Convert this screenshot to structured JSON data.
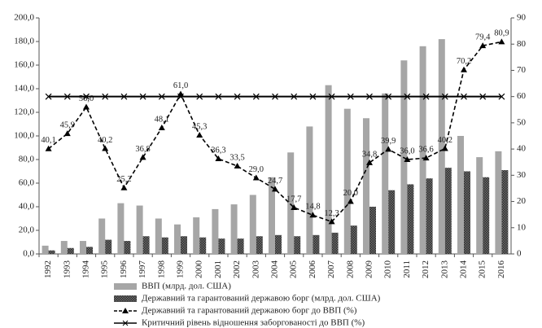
{
  "chart_data": {
    "type": "bar",
    "categories": [
      "1992",
      "1993",
      "1994",
      "1995",
      "1996",
      "1997",
      "1998",
      "1999",
      "2000",
      "2001",
      "2002",
      "2003",
      "2004",
      "2005",
      "2006",
      "2007",
      "2008",
      "2009",
      "2010",
      "2011",
      "2012",
      "2013",
      "2014",
      "2015",
      "2016"
    ],
    "series": [
      {
        "name": "ВВП (млрд. дол. США)",
        "type": "bar",
        "color": "#a6a6a6",
        "values": [
          7,
          11,
          11,
          30,
          43,
          41,
          30,
          25,
          31,
          38,
          42,
          50,
          65,
          86,
          108,
          143,
          123,
          115,
          136,
          164,
          176,
          182,
          100,
          82,
          87
        ]
      },
      {
        "name": "Державний та гарантований державою борг (млрд. дол. США)",
        "type": "bar",
        "color": "#4d4d4d",
        "pattern": true,
        "values": [
          3,
          5,
          6,
          12,
          11,
          15,
          14,
          15,
          14,
          13,
          13,
          15,
          16,
          15,
          16,
          18,
          24,
          40,
          54,
          59,
          64,
          73,
          70,
          65,
          71
        ]
      },
      {
        "name": "Державний та гарантований державою борг до ВВП (%)",
        "type": "line",
        "axis": "y2",
        "color": "#000000",
        "dash": true,
        "marker": "triangle",
        "values": [
          40.1,
          45.9,
          56.0,
          40.2,
          25.2,
          36.8,
          48.1,
          61.0,
          45.3,
          36.3,
          33.5,
          29.0,
          24.7,
          17.7,
          14.8,
          12.3,
          20.0,
          34.8,
          39.9,
          36.0,
          36.6,
          40.2,
          70.2,
          79.4,
          80.9
        ],
        "value_labels": [
          "40,1",
          "45,9",
          "56,0",
          "40,2",
          "25,2",
          "36,8",
          "48,1",
          "61,0",
          "45,3",
          "36,3",
          "33,5",
          "29,0",
          "24,7",
          "17,7",
          "14,8",
          "12,3",
          "20,0",
          "34,8",
          "39,9",
          "36,0",
          "36,6",
          "40,2",
          "70,2",
          "79,4",
          "80,9"
        ]
      },
      {
        "name": "Критичний рівень відношення заборгованості до ВВП (%)",
        "type": "line",
        "axis": "y2",
        "color": "#000000",
        "dash": false,
        "marker": "x",
        "values": [
          60,
          60,
          60,
          60,
          60,
          60,
          60,
          60,
          60,
          60,
          60,
          60,
          60,
          60,
          60,
          60,
          60,
          60,
          60,
          60,
          60,
          60,
          60,
          60,
          60
        ]
      }
    ],
    "ylim": [
      0,
      200
    ],
    "yticks": [
      {
        "value": 0,
        "label": "0,0"
      },
      {
        "value": 20,
        "label": "20,0"
      },
      {
        "value": 40,
        "label": "40,0"
      },
      {
        "value": 60,
        "label": "60,0"
      },
      {
        "value": 80,
        "label": "80,0"
      },
      {
        "value": 100,
        "label": "100,0"
      },
      {
        "value": 120,
        "label": "120,0"
      },
      {
        "value": 140,
        "label": "140,0"
      },
      {
        "value": 160,
        "label": "160,0"
      },
      {
        "value": 180,
        "label": "180,0"
      },
      {
        "value": 200,
        "label": "200,0"
      }
    ],
    "y2lim": [
      0,
      90
    ],
    "y2ticks": [
      0,
      10,
      20,
      30,
      40,
      50,
      60,
      70,
      80,
      90
    ],
    "legend": "bottom"
  }
}
